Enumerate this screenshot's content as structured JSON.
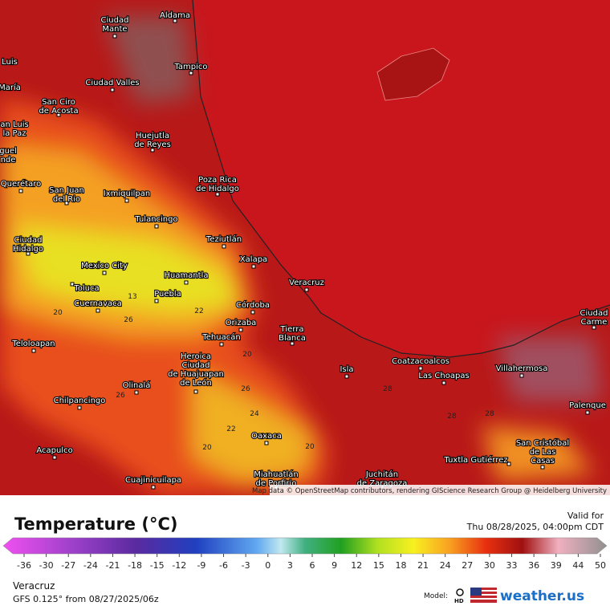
{
  "map": {
    "cities": [
      {
        "lines": [
          "Aldama"
        ]
      },
      {
        "lines": [
          "Ciudad",
          "Mante"
        ]
      },
      {
        "lines": [
          "Tampico"
        ]
      },
      {
        "lines": [
          "Luis"
        ]
      },
      {
        "lines": [
          "María"
        ]
      },
      {
        "lines": [
          "Ciudad Valles"
        ]
      },
      {
        "lines": [
          "San Ciro",
          "de Acosta"
        ]
      },
      {
        "lines": [
          "an Luis",
          "la Paz"
        ]
      },
      {
        "lines": [
          "Huejutla",
          "de Reyes"
        ]
      },
      {
        "lines": [
          "guel",
          "nde"
        ]
      },
      {
        "lines": [
          "Querétaro"
        ]
      },
      {
        "lines": [
          "San Juan",
          "del Rio"
        ]
      },
      {
        "lines": [
          "Ixmiquilpan"
        ]
      },
      {
        "lines": [
          "Poza Rica",
          "de Hidalgo"
        ]
      },
      {
        "lines": [
          "Tulancingo"
        ]
      },
      {
        "lines": [
          "Teziutlán"
        ]
      },
      {
        "lines": [
          "Ciudad",
          "Hidalgo"
        ]
      },
      {
        "lines": [
          "Xalapa"
        ]
      },
      {
        "lines": [
          "Mexico City"
        ]
      },
      {
        "lines": [
          "Huamantla"
        ]
      },
      {
        "lines": [
          "Toluca"
        ]
      },
      {
        "lines": [
          "Veracruz"
        ]
      },
      {
        "lines": [
          "Cuernavaca"
        ]
      },
      {
        "lines": [
          "Puebla"
        ]
      },
      {
        "lines": [
          "Córdoba"
        ]
      },
      {
        "lines": [
          "Orizaba"
        ]
      },
      {
        "lines": [
          "Tierra",
          "Blanca"
        ]
      },
      {
        "lines": [
          "Teloloapan"
        ]
      },
      {
        "lines": [
          "Tehuacán"
        ]
      },
      {
        "lines": [
          "Heroica",
          "Ciudad",
          "de Huajuapan",
          "de León"
        ]
      },
      {
        "lines": [
          "Coatzacoalcos"
        ]
      },
      {
        "lines": [
          "Las Choapas"
        ]
      },
      {
        "lines": [
          "Villahermosa"
        ]
      },
      {
        "lines": [
          "Ciudad",
          "Carme"
        ]
      },
      {
        "lines": [
          "Isla"
        ]
      },
      {
        "lines": [
          "Olinalá"
        ]
      },
      {
        "lines": [
          "Chilpancingo"
        ]
      },
      {
        "lines": [
          "Palenque"
        ]
      },
      {
        "lines": [
          "Oaxaca"
        ]
      },
      {
        "lines": [
          "San Cristóbal",
          "de Las",
          "Casas"
        ]
      },
      {
        "lines": [
          "Acapulco"
        ]
      },
      {
        "lines": [
          "Tuxtla Gutiérrez"
        ]
      },
      {
        "lines": [
          "Miahuatlán",
          "de Porfirio"
        ]
      },
      {
        "lines": [
          "Juchitán",
          "de Zaragoza"
        ]
      },
      {
        "lines": [
          "Cuajinicuilapa"
        ]
      }
    ],
    "contour_labels": [
      13,
      22,
      20,
      26,
      20,
      26,
      26,
      24,
      22,
      20,
      20,
      28,
      28,
      28
    ],
    "attribution": "Map data © OpenStreetMap contributors, rendering GIScience Research Group @ Heidelberg University"
  },
  "legend": {
    "title": "Temperature (°C)",
    "valid_label": "Valid for",
    "valid_time": "Thu 08/28/2025, 04:00pm CDT",
    "ticks": [
      -36,
      -30,
      -27,
      -24,
      -21,
      -18,
      -15,
      -12,
      -9,
      -6,
      -3,
      0,
      3,
      6,
      9,
      12,
      15,
      18,
      21,
      24,
      27,
      30,
      33,
      36,
      39,
      44,
      50
    ]
  },
  "footer": {
    "location": "Veracruz",
    "model_run": "GFS 0.125° from  08/27/2025/06z",
    "model_label": "Model:",
    "hd": "HD",
    "brand": "weather.us"
  }
}
